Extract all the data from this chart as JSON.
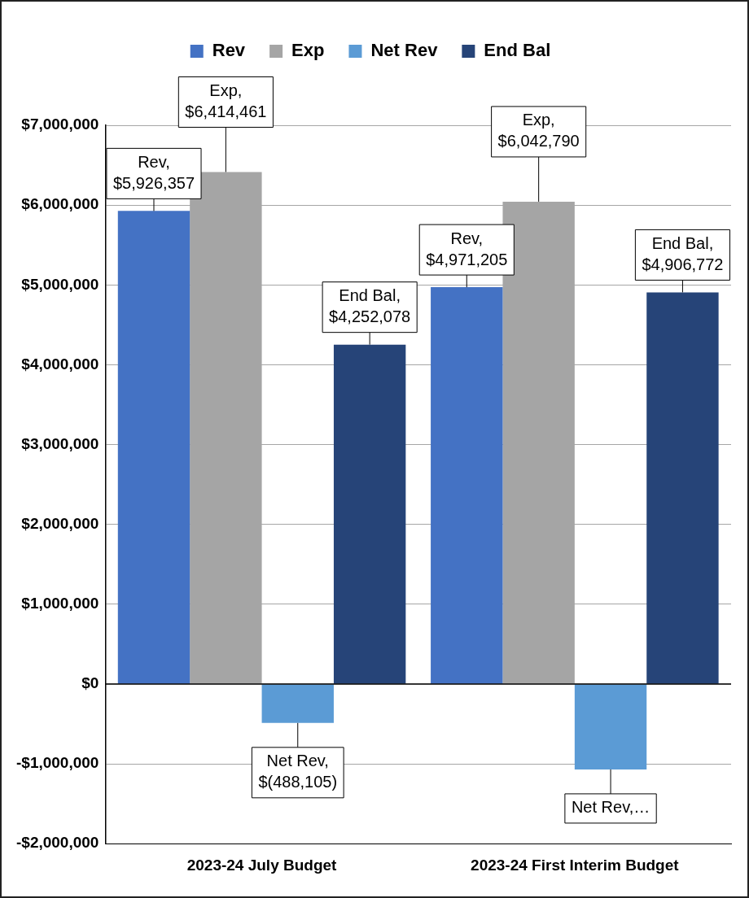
{
  "chart_data": {
    "type": "bar",
    "categories": [
      "2023-24 July Budget",
      "2023-24 First Interim Budget"
    ],
    "series": [
      {
        "name": "Rev",
        "color": "#4472c4",
        "values": [
          5926357,
          4971205
        ],
        "value_labels": [
          "Rev, $5,926,357",
          "Rev, $4,971,205"
        ]
      },
      {
        "name": "Exp",
        "color": "#a5a5a5",
        "values": [
          6414461,
          6042790
        ],
        "value_labels": [
          "Exp, $6,414,461",
          "Exp, $6,042,790"
        ]
      },
      {
        "name": "Net Rev",
        "color": "#5b9bd5",
        "values": [
          -488105,
          -1070000
        ],
        "value_labels": [
          "Net Rev, $(488,105)",
          "Net Rev,…"
        ]
      },
      {
        "name": "End Bal",
        "color": "#264478",
        "values": [
          4252078,
          4906772
        ],
        "value_labels": [
          "End Bal, $4,252,078",
          "End Bal, $4,906,772"
        ]
      }
    ],
    "ylim": [
      -2000000,
      7000000
    ],
    "yticks": [
      {
        "value": -2000000,
        "label": "-$2,000,000"
      },
      {
        "value": -1000000,
        "label": "-$1,000,000"
      },
      {
        "value": 0,
        "label": "$0"
      },
      {
        "value": 1000000,
        "label": "$1,000,000"
      },
      {
        "value": 2000000,
        "label": "$2,000,000"
      },
      {
        "value": 3000000,
        "label": "$3,000,000"
      },
      {
        "value": 4000000,
        "label": "$4,000,000"
      },
      {
        "value": 5000000,
        "label": "$5,000,000"
      },
      {
        "value": 6000000,
        "label": "$6,000,000"
      },
      {
        "value": 7000000,
        "label": "$7,000,000"
      }
    ],
    "grid": "y",
    "legend": "top"
  }
}
